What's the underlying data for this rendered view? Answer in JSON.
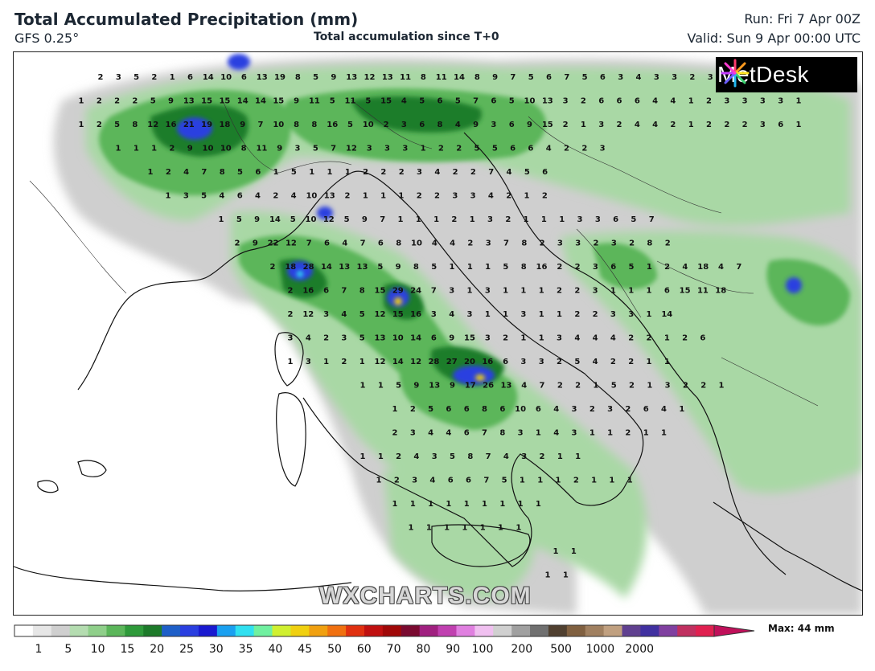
{
  "header": {
    "title": "Total Accumulated Precipitation (mm)",
    "model": "GFS 0.25°",
    "subtitle": "Total accumulation since T+0",
    "run": "Run: Fri 7 Apr 00Z",
    "valid": "Valid: Sun 9 Apr 00:00 UTC"
  },
  "brand": {
    "logo_text": "MetDesk",
    "watermark": "WXCHARTS.COM"
  },
  "legend": {
    "max_label": "Max: 44 mm",
    "ticks": [
      "1",
      "5",
      "10",
      "15",
      "20",
      "25",
      "30",
      "35",
      "40",
      "45",
      "50",
      "60",
      "70",
      "80",
      "90",
      "100",
      "200",
      "500",
      "1000",
      "2000"
    ],
    "colors": [
      "#ffffff",
      "#e6e6e6",
      "#cfcfcf",
      "#b4dcb0",
      "#8fcf8a",
      "#5bb65a",
      "#2e9a3a",
      "#1d7a2a",
      "#1e5fc8",
      "#2a3fe0",
      "#1a1ad0",
      "#1aa0f0",
      "#30e0f0",
      "#70f0a0",
      "#d0f030",
      "#f0d010",
      "#f0a010",
      "#f07010",
      "#e03010",
      "#c01010",
      "#a00808",
      "#7a0a30",
      "#a02080",
      "#c040b0",
      "#e080e0",
      "#f0c0f0",
      "#d0d0d0",
      "#a0a0a0",
      "#707070",
      "#504030",
      "#806040",
      "#a08060",
      "#c0a080",
      "#604090",
      "#4030a0",
      "#8040a0",
      "#c03060",
      "#e02050"
    ],
    "max_color": "#c0105a"
  },
  "map_labels": {
    "rows": [
      [
        "2",
        "3",
        "5",
        "2",
        "1",
        "6",
        "14",
        "10",
        "6",
        "13",
        "19",
        "8",
        "5",
        "9",
        "13",
        "12",
        "13",
        "11",
        "8",
        "11",
        "14",
        "8",
        "9",
        "7",
        "5",
        "6",
        "7",
        "5",
        "6",
        "3",
        "4",
        "3",
        "3",
        "2",
        "3"
      ],
      [
        "1",
        "2",
        "2",
        "2",
        "5",
        "9",
        "13",
        "15",
        "15",
        "14",
        "14",
        "15",
        "9",
        "11",
        "5",
        "11",
        "5",
        "15",
        "4",
        "5",
        "6",
        "5",
        "7",
        "6",
        "5",
        "10",
        "13",
        "3",
        "2",
        "6",
        "6",
        "6",
        "4",
        "4",
        "1",
        "2",
        "3",
        "3",
        "3",
        "3",
        "1"
      ],
      [
        "1",
        "2",
        "5",
        "8",
        "12",
        "16",
        "21",
        "19",
        "18",
        "9",
        "7",
        "10",
        "8",
        "8",
        "16",
        "5",
        "10",
        "2",
        "3",
        "6",
        "8",
        "4",
        "9",
        "3",
        "6",
        "9",
        "15",
        "2",
        "1",
        "3",
        "2",
        "4",
        "4",
        "2",
        "1",
        "2",
        "2",
        "2",
        "3",
        "6",
        "1"
      ],
      [
        "1",
        "1",
        "1",
        "2",
        "9",
        "10",
        "10",
        "8",
        "11",
        "9",
        "3",
        "5",
        "7",
        "12",
        "3",
        "3",
        "3",
        "1",
        "2",
        "2",
        "5",
        "5",
        "6",
        "6",
        "4",
        "2",
        "2",
        "3"
      ],
      [
        "1",
        "2",
        "4",
        "7",
        "8",
        "5",
        "6",
        "1",
        "5",
        "1",
        "1",
        "1",
        "2",
        "2",
        "2",
        "3",
        "4",
        "2",
        "2",
        "7",
        "4",
        "5",
        "6"
      ],
      [
        "1",
        "3",
        "5",
        "4",
        "6",
        "4",
        "2",
        "4",
        "10",
        "13",
        "2",
        "1",
        "1",
        "1",
        "2",
        "2",
        "3",
        "3",
        "4",
        "2",
        "1",
        "2"
      ],
      [
        "1",
        "5",
        "9",
        "14",
        "5",
        "10",
        "12",
        "5",
        "9",
        "7",
        "1",
        "1",
        "1",
        "2",
        "1",
        "3",
        "2",
        "1",
        "1",
        "1",
        "3",
        "3",
        "6",
        "5",
        "7"
      ],
      [
        "2",
        "9",
        "22",
        "12",
        "7",
        "6",
        "4",
        "7",
        "6",
        "8",
        "10",
        "4",
        "4",
        "2",
        "3",
        "7",
        "8",
        "2",
        "3",
        "3",
        "2",
        "3",
        "2",
        "8",
        "2"
      ],
      [
        "2",
        "18",
        "28",
        "14",
        "13",
        "13",
        "5",
        "9",
        "8",
        "5",
        "1",
        "1",
        "1",
        "5",
        "8",
        "16",
        "2",
        "2",
        "3",
        "6",
        "5",
        "1",
        "2",
        "4",
        "18",
        "4",
        "7"
      ],
      [
        "2",
        "16",
        "6",
        "7",
        "8",
        "15",
        "29",
        "24",
        "7",
        "3",
        "1",
        "3",
        "1",
        "1",
        "1",
        "2",
        "2",
        "3",
        "1",
        "1",
        "1",
        "6",
        "15",
        "11",
        "18"
      ],
      [
        "2",
        "12",
        "3",
        "4",
        "5",
        "12",
        "15",
        "16",
        "3",
        "4",
        "3",
        "1",
        "1",
        "3",
        "1",
        "1",
        "2",
        "2",
        "3",
        "3",
        "1",
        "14"
      ],
      [
        "3",
        "4",
        "2",
        "3",
        "5",
        "13",
        "10",
        "14",
        "6",
        "9",
        "15",
        "3",
        "2",
        "1",
        "1",
        "3",
        "4",
        "4",
        "4",
        "2",
        "2",
        "1",
        "2",
        "6"
      ],
      [
        "1",
        "3",
        "1",
        "2",
        "1",
        "12",
        "14",
        "12",
        "28",
        "27",
        "20",
        "16",
        "6",
        "3",
        "3",
        "2",
        "5",
        "4",
        "2",
        "2",
        "1",
        "1"
      ],
      [
        "1",
        "1",
        "5",
        "9",
        "13",
        "9",
        "17",
        "26",
        "13",
        "4",
        "7",
        "2",
        "2",
        "1",
        "5",
        "2",
        "1",
        "3",
        "2",
        "2",
        "1"
      ],
      [
        "1",
        "2",
        "5",
        "6",
        "6",
        "8",
        "6",
        "10",
        "6",
        "4",
        "3",
        "2",
        "3",
        "2",
        "6",
        "4",
        "1"
      ],
      [
        "2",
        "3",
        "4",
        "4",
        "6",
        "7",
        "8",
        "3",
        "1",
        "4",
        "3",
        "1",
        "1",
        "2",
        "1",
        "1"
      ],
      [
        "1",
        "1",
        "2",
        "4",
        "3",
        "5",
        "8",
        "7",
        "4",
        "3",
        "2",
        "1",
        "1"
      ],
      [
        "1",
        "2",
        "3",
        "4",
        "6",
        "6",
        "7",
        "5",
        "1",
        "1",
        "1",
        "2",
        "1",
        "1",
        "1"
      ],
      [
        "1",
        "1",
        "1",
        "1",
        "1",
        "1",
        "1",
        "1",
        "1"
      ],
      [
        "1",
        "1",
        "1",
        "1",
        "1",
        "1",
        "1"
      ],
      [
        "1",
        "1"
      ],
      [
        "1",
        "1"
      ]
    ]
  }
}
